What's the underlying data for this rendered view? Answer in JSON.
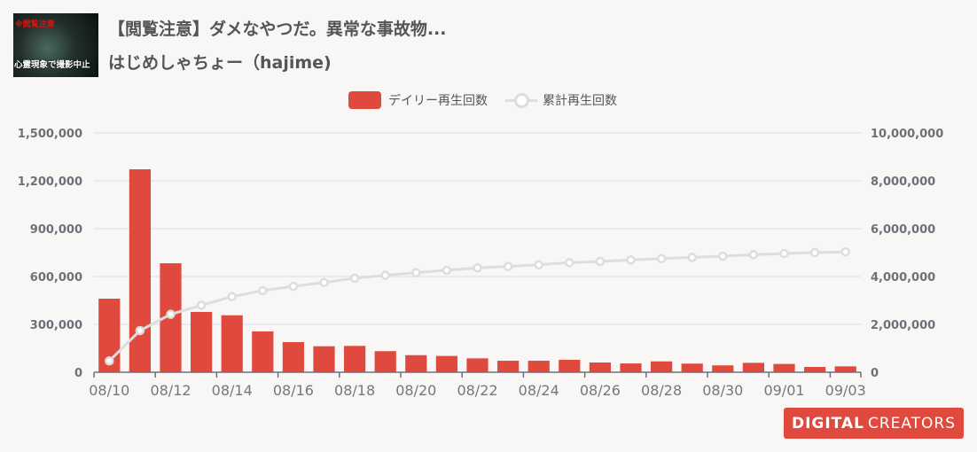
{
  "header": {
    "thumbnail_text_top": "※閲覧注意",
    "thumbnail_text_bottom": "心霊現象で撮影中止",
    "title": "【閲覧注意】ダメなやつだ。異常な事故物...",
    "channel": "はじめしゃちょー（hajime)"
  },
  "logo": {
    "part1": "DIGITAL",
    "part2": "CREATORS"
  },
  "colors": {
    "bar": "#e0493e",
    "line": "#dddddd",
    "grid": "#dfe6f2",
    "axis": "#6e7079"
  },
  "chart_data": {
    "type": "bar+line",
    "legend": [
      "デイリー再生回数",
      "累計再生回数"
    ],
    "legend_position": "top-center",
    "categories": [
      "08/10",
      "08/11",
      "08/12",
      "08/13",
      "08/14",
      "08/15",
      "08/16",
      "08/17",
      "08/18",
      "08/19",
      "08/20",
      "08/21",
      "08/22",
      "08/23",
      "08/24",
      "08/25",
      "08/26",
      "08/27",
      "08/28",
      "08/29",
      "08/30",
      "08/31",
      "09/01",
      "09/02",
      "09/03"
    ],
    "x_tick_labels": [
      "08/10",
      "08/12",
      "08/14",
      "08/16",
      "08/18",
      "08/20",
      "08/22",
      "08/24",
      "08/26",
      "08/28",
      "08/30",
      "09/01",
      "09/03"
    ],
    "series": [
      {
        "name": "デイリー再生回数",
        "type": "bar",
        "axis": "left",
        "values": [
          461000,
          1272000,
          683000,
          378000,
          357000,
          256000,
          189000,
          163000,
          165000,
          132000,
          107000,
          102000,
          87000,
          72000,
          72000,
          78000,
          61000,
          55000,
          68000,
          54000,
          43000,
          59000,
          52000,
          33000,
          37000
        ]
      },
      {
        "name": "累計再生回数",
        "type": "line",
        "axis": "right",
        "values": [
          470000,
          1740000,
          2420000,
          2800000,
          3160000,
          3410000,
          3590000,
          3750000,
          3930000,
          4050000,
          4160000,
          4260000,
          4360000,
          4420000,
          4490000,
          4580000,
          4630000,
          4690000,
          4750000,
          4800000,
          4850000,
          4910000,
          4960000,
          5000000,
          5030000
        ]
      }
    ],
    "y_left": {
      "range": [
        0,
        1500000
      ],
      "ticks": [
        "0",
        "300,000",
        "600,000",
        "900,000",
        "1,200,000",
        "1,500,000"
      ]
    },
    "y_right": {
      "range": [
        0,
        10000000
      ],
      "ticks": [
        "0",
        "2,000,000",
        "4,000,000",
        "6,000,000",
        "8,000,000",
        "10,000,000"
      ]
    },
    "grid": true
  }
}
